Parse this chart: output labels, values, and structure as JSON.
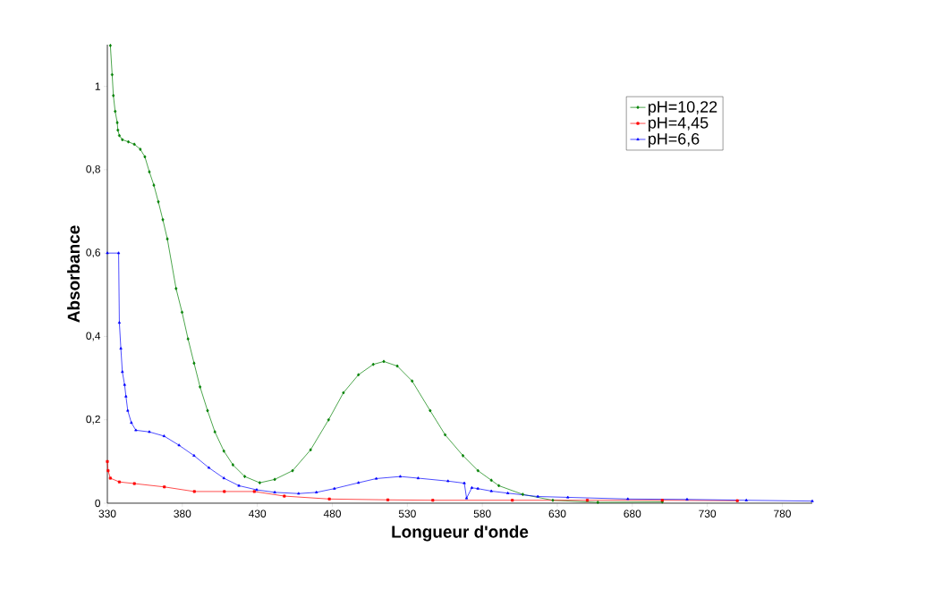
{
  "chart_data": {
    "type": "line",
    "xlabel": "Longueur d'onde",
    "ylabel": "Absorbance",
    "xlim": [
      330,
      800
    ],
    "ylim": [
      0,
      1.1
    ],
    "xticks": [
      330,
      380,
      430,
      480,
      530,
      580,
      630,
      680,
      730,
      780
    ],
    "yticks": [
      0,
      {
        "value": 0.2,
        "label": "0,2"
      },
      {
        "value": 0.4,
        "label": "0,4"
      },
      {
        "value": 0.6,
        "label": "0,6"
      },
      {
        "value": 0.8,
        "label": "0,8"
      },
      1
    ],
    "grid": false,
    "legend": "top right",
    "series": [
      {
        "name": "pH=10,22",
        "color": "#008000",
        "marker": "diamond",
        "x": [
          332,
          333.2,
          334,
          335.2,
          336.6,
          337,
          338,
          340,
          344,
          348,
          352,
          355,
          358,
          361,
          364,
          367,
          370,
          375.8,
          379.8,
          383.8,
          387.8,
          391.8,
          396.8,
          401.7,
          407.7,
          413.7,
          421.6,
          431.6,
          441.6,
          453.5,
          465.5,
          477.5,
          487.4,
          497.4,
          507.3,
          514.3,
          523.3,
          533.2,
          545.2,
          555.2,
          567.1,
          577.1,
          586,
          591,
          607,
          627,
          657,
          700
        ],
        "values": [
          1.098,
          1.028,
          0.978,
          0.94,
          0.913,
          0.895,
          0.882,
          0.872,
          0.867,
          0.861,
          0.849,
          0.831,
          0.795,
          0.763,
          0.723,
          0.68,
          0.634,
          0.515,
          0.458,
          0.394,
          0.336,
          0.279,
          0.222,
          0.171,
          0.125,
          0.092,
          0.064,
          0.049,
          0.057,
          0.078,
          0.128,
          0.2,
          0.265,
          0.308,
          0.333,
          0.34,
          0.329,
          0.293,
          0.222,
          0.164,
          0.114,
          0.078,
          0.055,
          0.042,
          0.021,
          0.007,
          0.002,
          0.003
        ]
      },
      {
        "name": "pH=4,45",
        "color": "#ff0000",
        "marker": "square",
        "x": [
          330,
          330.5,
          332,
          338,
          348,
          368,
          388,
          408,
          428,
          448,
          478,
          517,
          547,
          600,
          650,
          700,
          750
        ],
        "values": [
          0.1,
          0.078,
          0.06,
          0.051,
          0.047,
          0.039,
          0.028,
          0.028,
          0.028,
          0.017,
          0.01,
          0.008,
          0.007,
          0.007,
          0.007,
          0.007,
          0.006
        ]
      },
      {
        "name": "pH=6,6",
        "color": "#0000ff",
        "marker": "triangle",
        "x": [
          330,
          337.5,
          338,
          339,
          340,
          341.5,
          342.4,
          343.6,
          346,
          349,
          358,
          367.8,
          377.8,
          387.8,
          397.7,
          407.7,
          417.7,
          429.6,
          441.6,
          457.5,
          469.4,
          481.4,
          497.4,
          509.3,
          525.3,
          537.2,
          557.1,
          568,
          569.5,
          573,
          577,
          586,
          597,
          617,
          637,
          677,
          716.5,
          756,
          800
        ],
        "values": [
          0.6,
          0.6,
          0.433,
          0.371,
          0.315,
          0.284,
          0.256,
          0.222,
          0.193,
          0.175,
          0.171,
          0.161,
          0.139,
          0.114,
          0.085,
          0.06,
          0.042,
          0.032,
          0.026,
          0.023,
          0.026,
          0.035,
          0.049,
          0.059,
          0.064,
          0.06,
          0.053,
          0.048,
          0.012,
          0.037,
          0.035,
          0.029,
          0.024,
          0.016,
          0.014,
          0.01,
          0.009,
          0.007,
          0.005
        ]
      }
    ]
  }
}
